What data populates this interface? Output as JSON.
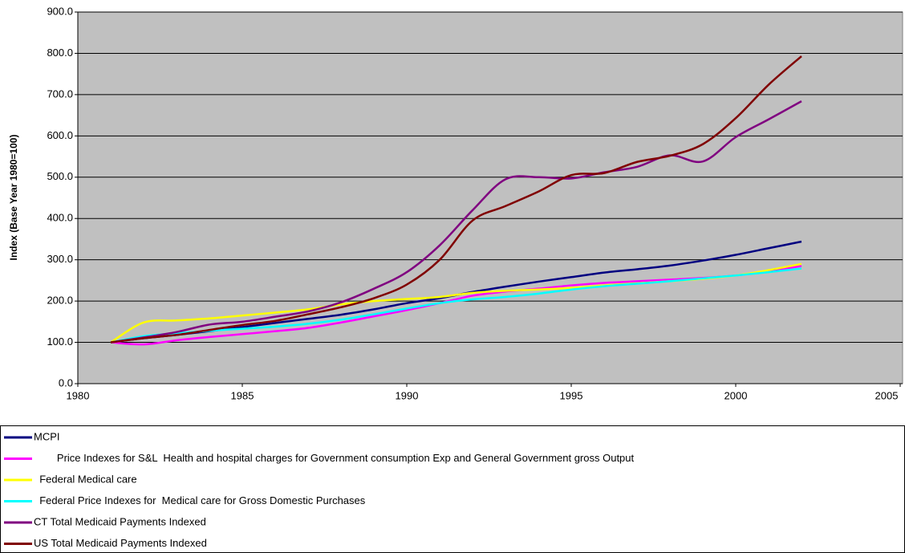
{
  "chart_data": {
    "type": "line",
    "y_label": "Index (Base Year 1980=100)",
    "x": [
      1981,
      1982,
      1983,
      1984,
      1985,
      1986,
      1987,
      1988,
      1989,
      1990,
      1991,
      1992,
      1993,
      1994,
      1995,
      1996,
      1997,
      1998,
      1999,
      2000,
      2001,
      2002
    ],
    "xlim": [
      1980,
      2005
    ],
    "xticks": [
      1980,
      1985,
      1990,
      1995,
      2000,
      2005
    ],
    "ylim": [
      0,
      900
    ],
    "yticks": [
      {
        "value": 0,
        "label": "0.0"
      },
      {
        "value": 100,
        "label": "100.0"
      },
      {
        "value": 200,
        "label": "200.0"
      },
      {
        "value": 300,
        "label": "300.0"
      },
      {
        "value": 400,
        "label": "400.0"
      },
      {
        "value": 500,
        "label": "500.0"
      },
      {
        "value": 600,
        "label": "600.0"
      },
      {
        "value": 700,
        "label": "700.0"
      },
      {
        "value": 800,
        "label": "800.0"
      },
      {
        "value": 900,
        "label": "900.0"
      }
    ],
    "grid": true,
    "background": "#c0c0c0",
    "legend": "bottom",
    "series": [
      {
        "name": "MCPI",
        "color": "#000080",
        "values": [
          100,
          110,
          118,
          127,
          137,
          147,
          157,
          167,
          180,
          195,
          207,
          222,
          235,
          247,
          258,
          269,
          277,
          286,
          298,
          312,
          328,
          344
        ]
      },
      {
        "name": "        Price Indexes for S&L  Health and hospital charges for Government consumption Exp and General Government gross Output",
        "color": "#ff00ff",
        "values": [
          100,
          95,
          105,
          113,
          120,
          127,
          135,
          148,
          163,
          178,
          195,
          213,
          223,
          230,
          238,
          244,
          248,
          252,
          256,
          262,
          272,
          285
        ]
      },
      {
        "name": "  Federal Medical care",
        "color": "#ffff00",
        "values": [
          100,
          148,
          153,
          158,
          165,
          172,
          180,
          192,
          200,
          205,
          210,
          220,
          225,
          228,
          232,
          238,
          243,
          248,
          254,
          262,
          275,
          290
        ]
      },
      {
        "name": "  Federal Price Indexes for  Medical care for Gross Domestic Purchases",
        "color": "#00ffff",
        "values": [
          100,
          115,
          122,
          128,
          133,
          138,
          145,
          155,
          168,
          182,
          195,
          204,
          210,
          218,
          228,
          236,
          242,
          248,
          255,
          262,
          270,
          279
        ]
      },
      {
        "name": "CT Total Medicaid Payments Indexed",
        "color": "#800080",
        "values": [
          100,
          112,
          125,
          143,
          150,
          162,
          175,
          197,
          230,
          270,
          335,
          420,
          495,
          500,
          497,
          512,
          525,
          553,
          538,
          597,
          640,
          684
        ]
      },
      {
        "name": "US Total Medicaid Payments Indexed",
        "color": "#800000",
        "values": [
          100,
          110,
          118,
          130,
          142,
          152,
          168,
          185,
          207,
          240,
          300,
          395,
          430,
          465,
          505,
          510,
          537,
          552,
          580,
          643,
          724,
          793
        ]
      }
    ]
  }
}
